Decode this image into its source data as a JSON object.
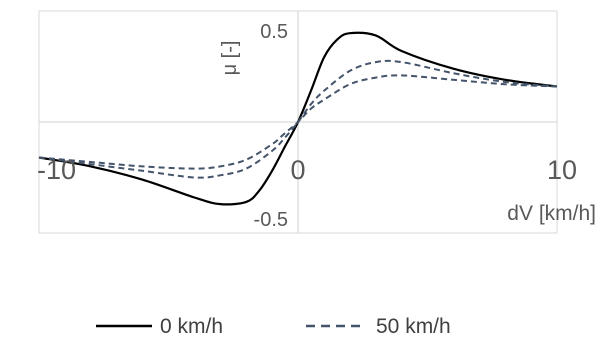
{
  "chart_data": {
    "type": "line",
    "xlabel": "dV [km/h]",
    "ylabel": "μ [-]",
    "xlim": [
      -10,
      10
    ],
    "ylim": [
      -0.5,
      0.5
    ],
    "x_ticks": [
      {
        "value": -10,
        "label": "-10"
      },
      {
        "value": 0,
        "label": "0"
      },
      {
        "value": 10,
        "label": "10"
      }
    ],
    "y_ticks": [
      {
        "value": 0.5,
        "label": "0.5"
      },
      {
        "value": -0.5,
        "label": "-0.5"
      }
    ],
    "grid": true,
    "legend_position": "bottom",
    "series": [
      {
        "name": "0 km/h",
        "style": "solid",
        "color": "#000000",
        "x": [
          -10,
          -8,
          -6,
          -4,
          -3,
          -2,
          -1.5,
          -1,
          -0.5,
          0,
          0.5,
          1,
          1.5,
          2,
          3,
          4,
          6,
          8,
          10
        ],
        "y": [
          -0.16,
          -0.2,
          -0.26,
          -0.34,
          -0.37,
          -0.36,
          -0.31,
          -0.22,
          -0.11,
          0.0,
          0.14,
          0.29,
          0.37,
          0.4,
          0.39,
          0.32,
          0.24,
          0.19,
          0.16
        ]
      },
      {
        "name": "50 km/h",
        "style": "dashed",
        "color": "#44546A",
        "x": [
          -10,
          -8,
          -6,
          -4,
          -3,
          -2,
          -1,
          -0.5,
          0,
          0.5,
          1,
          2,
          3,
          4,
          6,
          8,
          10
        ],
        "y": [
          -0.16,
          -0.19,
          -0.22,
          -0.25,
          -0.24,
          -0.21,
          -0.13,
          -0.07,
          0.0,
          0.08,
          0.14,
          0.23,
          0.27,
          0.27,
          0.22,
          0.18,
          0.16
        ]
      },
      {
        "name": "",
        "style": "dashed",
        "color": "#44546A",
        "x": [
          -10,
          -8,
          -6,
          -4,
          -3,
          -2,
          -1,
          -0.5,
          0,
          0.5,
          1,
          2,
          3,
          4,
          6,
          8,
          10
        ],
        "y": [
          -0.16,
          -0.18,
          -0.2,
          -0.21,
          -0.2,
          -0.17,
          -0.1,
          -0.05,
          0.0,
          0.06,
          0.1,
          0.17,
          0.2,
          0.21,
          0.19,
          0.17,
          0.16
        ]
      }
    ]
  },
  "legend": [
    {
      "label": "0 km/h",
      "style": "solid",
      "color": "#000000"
    },
    {
      "label": "50 km/h",
      "style": "dashed",
      "color": "#44546A"
    }
  ],
  "colors": {
    "grid": "#D9D9D9",
    "axis_text": "#595959"
  }
}
